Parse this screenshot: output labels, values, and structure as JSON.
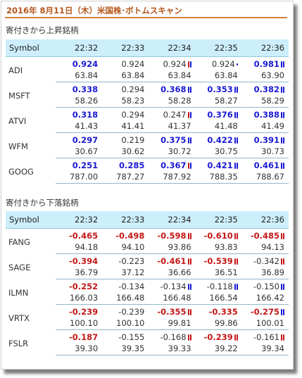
{
  "page": {
    "title": "2016年 8月11日（木）米国株･ボトムスキャン"
  },
  "tables": [
    {
      "title": "寄付きから上昇銘柄",
      "header": [
        "Symbol",
        "22:32",
        "22:33",
        "22:34",
        "22:35",
        "22:36"
      ],
      "rows": [
        {
          "symbol": "ADI",
          "changes": [
            {
              "v": "0.924",
              "style": "bold blue"
            },
            {
              "v": "0.924",
              "style": "gray"
            },
            {
              "v": "0.924",
              "style": "gray",
              "candle": "mix"
            },
            {
              "v": "0.924",
              "style": "gray",
              "candle": "small"
            },
            {
              "v": "0.981",
              "style": "bold blue",
              "candle": "up"
            }
          ],
          "prices": [
            "63.84",
            "63.84",
            "63.84",
            "63.84",
            "63.90"
          ]
        },
        {
          "symbol": "MSFT",
          "changes": [
            {
              "v": "0.338",
              "style": "bold blue"
            },
            {
              "v": "0.294",
              "style": "gray"
            },
            {
              "v": "0.368",
              "style": "bold blue",
              "candle": "up"
            },
            {
              "v": "0.353",
              "style": "bold blue",
              "candle": "up"
            },
            {
              "v": "0.382",
              "style": "bold blue",
              "candle": "up"
            }
          ],
          "prices": [
            "58.26",
            "58.23",
            "58.28",
            "58.27",
            "58.29"
          ]
        },
        {
          "symbol": "ATVI",
          "changes": [
            {
              "v": "0.318",
              "style": "bold blue"
            },
            {
              "v": "0.294",
              "style": "gray"
            },
            {
              "v": "0.247",
              "style": "gray",
              "candle": "mix"
            },
            {
              "v": "0.376",
              "style": "bold blue",
              "candle": "up"
            },
            {
              "v": "0.388",
              "style": "bold blue",
              "candle": "up"
            }
          ],
          "prices": [
            "41.43",
            "41.41",
            "41.37",
            "41.48",
            "41.49"
          ]
        },
        {
          "symbol": "WFM",
          "changes": [
            {
              "v": "0.297",
              "style": "bold blue"
            },
            {
              "v": "0.219",
              "style": "gray"
            },
            {
              "v": "0.375",
              "style": "bold blue",
              "candle": "up"
            },
            {
              "v": "0.422",
              "style": "bold blue",
              "candle": "up"
            },
            {
              "v": "0.391",
              "style": "bold blue",
              "candle": "up"
            }
          ],
          "prices": [
            "30.67",
            "30.62",
            "30.72",
            "30.75",
            "30.73"
          ]
        },
        {
          "symbol": "GOOG",
          "changes": [
            {
              "v": "0.251",
              "style": "bold blue"
            },
            {
              "v": "0.285",
              "style": "bold blue"
            },
            {
              "v": "0.367",
              "style": "bold blue",
              "candle": "mix"
            },
            {
              "v": "0.421",
              "style": "bold blue",
              "candle": "up"
            },
            {
              "v": "0.461",
              "style": "bold blue",
              "candle": "up"
            }
          ],
          "prices": [
            "787.00",
            "787.27",
            "787.92",
            "788.35",
            "788.67"
          ]
        }
      ]
    },
    {
      "title": "寄付きから下落銘柄",
      "header": [
        "Symbol",
        "22:32",
        "22:33",
        "22:34",
        "22:35",
        "22:36"
      ],
      "rows": [
        {
          "symbol": "FANG",
          "changes": [
            {
              "v": "-0.465",
              "style": "bold red"
            },
            {
              "v": "-0.498",
              "style": "bold red"
            },
            {
              "v": "-0.598",
              "style": "bold red",
              "candle": "down"
            },
            {
              "v": "-0.610",
              "style": "bold red",
              "candle": "down"
            },
            {
              "v": "-0.485",
              "style": "bold red",
              "candle": "down"
            }
          ],
          "prices": [
            "94.18",
            "94.10",
            "93.86",
            "93.83",
            "94.13"
          ]
        },
        {
          "symbol": "SAGE",
          "changes": [
            {
              "v": "-0.394",
              "style": "bold red"
            },
            {
              "v": "-0.223",
              "style": "gray"
            },
            {
              "v": "-0.461",
              "style": "bold red",
              "candle": "down"
            },
            {
              "v": "-0.539",
              "style": "bold red",
              "candle": "down"
            },
            {
              "v": "-0.342",
              "style": "gray",
              "candle": "down"
            }
          ],
          "prices": [
            "36.79",
            "37.12",
            "36.66",
            "36.51",
            "36.89"
          ]
        },
        {
          "symbol": "ILMN",
          "changes": [
            {
              "v": "-0.252",
              "style": "bold red"
            },
            {
              "v": "-0.134",
              "style": "gray"
            },
            {
              "v": "-0.134",
              "style": "gray",
              "candle": "up"
            },
            {
              "v": "-0.118",
              "style": "gray",
              "candle": "up"
            },
            {
              "v": "-0.150",
              "style": "gray",
              "candle": "up"
            }
          ],
          "prices": [
            "166.03",
            "166.48",
            "166.48",
            "166.54",
            "166.42"
          ]
        },
        {
          "symbol": "VRTX",
          "changes": [
            {
              "v": "-0.239",
              "style": "bold red"
            },
            {
              "v": "-0.239",
              "style": "gray"
            },
            {
              "v": "-0.355",
              "style": "bold red",
              "candle": "down"
            },
            {
              "v": "-0.335",
              "style": "bold red"
            },
            {
              "v": "-0.275",
              "style": "bold red",
              "candle": "up"
            }
          ],
          "prices": [
            "100.10",
            "100.10",
            "99.81",
            "99.86",
            "100.01"
          ]
        },
        {
          "symbol": "FSLR",
          "changes": [
            {
              "v": "-0.187",
              "style": "bold red"
            },
            {
              "v": "-0.155",
              "style": "gray"
            },
            {
              "v": "-0.168",
              "style": "gray",
              "candle": "down"
            },
            {
              "v": "-0.239",
              "style": "bold red",
              "candle": "down"
            },
            {
              "v": "-0.161",
              "style": "gray",
              "candle": "down"
            }
          ],
          "prices": [
            "39.30",
            "39.35",
            "39.33",
            "39.22",
            "39.34"
          ]
        }
      ]
    }
  ],
  "colors": {
    "up": "#1a1ad4",
    "down": "#c41818",
    "header_bg": "#cdeefb",
    "title": "#b5561c"
  }
}
